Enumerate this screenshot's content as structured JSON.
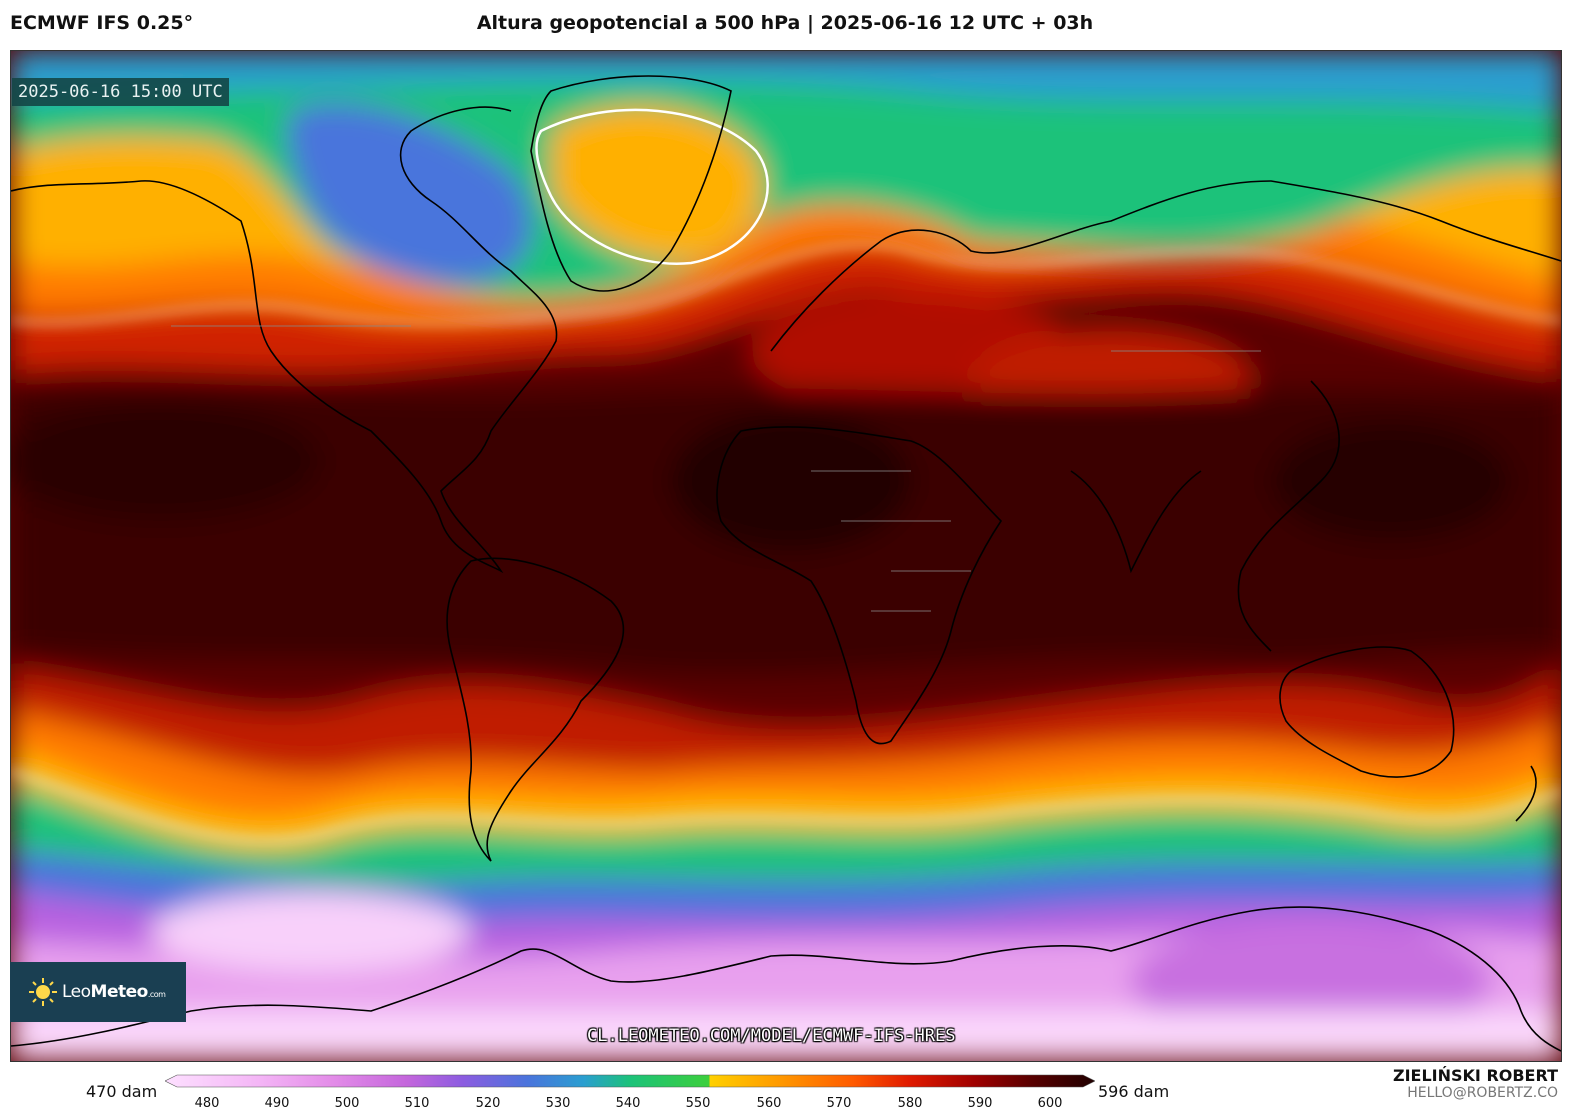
{
  "header": {
    "model": "ECMWF IFS 0.25°",
    "title": "Altura geopotencial a 500 hPa | 2025-06-16 12 UTC + 03h"
  },
  "map": {
    "valid_time": "2025-06-16 15:00 UTC",
    "watermark_url": "CL.LEOMETEO.COM/MODEL/ECMWF-IFS-HRES",
    "brand": {
      "name_light": "Leo",
      "name_bold": "Meteo",
      "suffix": ".com"
    }
  },
  "colorbar": {
    "min_label": "470 dam",
    "max_label": "596 dam",
    "ticks": [
      "480",
      "490",
      "500",
      "510",
      "520",
      "530",
      "540",
      "550",
      "560",
      "570",
      "580",
      "590",
      "600"
    ],
    "colors": [
      "#fde0ff",
      "#f4b6f6",
      "#e38ce8",
      "#c466dc",
      "#8c5ce0",
      "#4a74dc",
      "#2a9ed0",
      "#1cc27a",
      "#3ccf3c",
      "#ffd000",
      "#ff9a00",
      "#ff5a00",
      "#e01a00",
      "#a00000",
      "#5a0000",
      "#200000"
    ]
  },
  "author": {
    "name": "ZIELIŃSKI ROBERT",
    "email": "HELLO@ROBERTZ.CO"
  }
}
